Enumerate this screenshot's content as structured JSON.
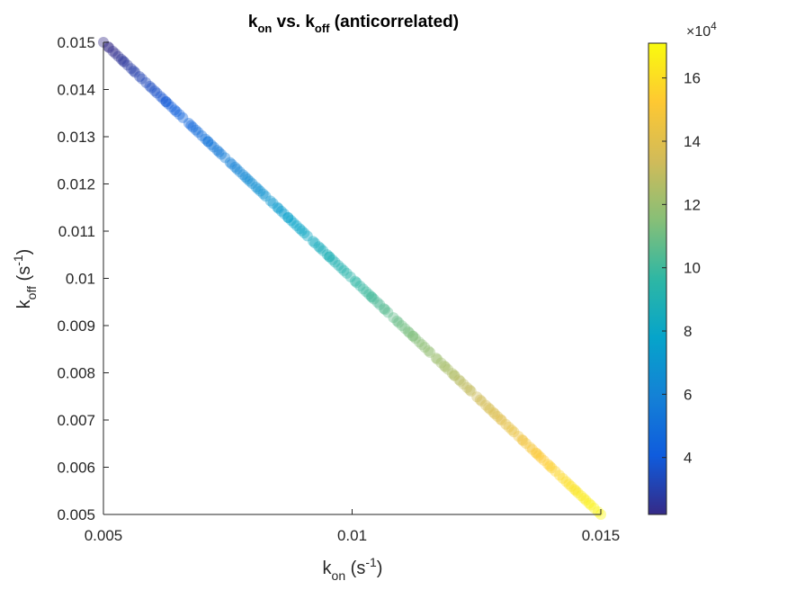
{
  "chart_data": {
    "type": "scatter",
    "title": {
      "k": "k",
      "on_sub": "on",
      "vs": " vs. ",
      "k2": "k",
      "off_sub": "off",
      "rest": " (anticorrelated)"
    },
    "xlabel": {
      "base": "k",
      "sub": "on",
      "unit_prefix": " (s",
      "sup": "-1",
      "unit_suffix": ")"
    },
    "ylabel": {
      "base": "k",
      "sub": "off",
      "unit_prefix": " (s",
      "sup": "-1",
      "unit_suffix": ")"
    },
    "xlim": [
      0.005,
      0.015
    ],
    "ylim": [
      0.005,
      0.015
    ],
    "x_ticks": [
      0.005,
      0.01,
      0.015
    ],
    "x_tick_labels": [
      "0.005",
      "0.01",
      "0.015"
    ],
    "y_ticks": [
      0.005,
      0.006,
      0.007,
      0.008,
      0.009,
      0.01,
      0.011,
      0.012,
      0.013,
      0.014,
      0.015
    ],
    "y_tick_labels": [
      "0.005",
      "0.006",
      "0.007",
      "0.008",
      "0.009",
      "0.01",
      "0.011",
      "0.012",
      "0.013",
      "0.014",
      "0.015"
    ],
    "relation": "k_off = 0.02 - k_on",
    "x_range": [
      0.005,
      0.015
    ],
    "point_count": 180,
    "color_variable_range": [
      20000,
      170000
    ],
    "colorbar": {
      "colormap": "parula",
      "lim": [
        2.2,
        17.1
      ],
      "ticks": [
        4,
        6,
        8,
        10,
        12,
        14,
        16
      ],
      "tick_labels": [
        "4",
        "6",
        "8",
        "10",
        "12",
        "14",
        "16"
      ],
      "multiplier_prefix": "×10",
      "multiplier_exp": "4"
    },
    "grid": false,
    "marker_alpha": 0.4
  },
  "colors": {
    "axis": "#262626",
    "text": "#262626",
    "title": "#000000",
    "parula_stops": [
      "#352A87",
      "#0F5CDD",
      "#1481D6",
      "#06A4CA",
      "#2EB7A4",
      "#87BF77",
      "#D1BB59",
      "#FEC832",
      "#F9FB0E"
    ]
  }
}
